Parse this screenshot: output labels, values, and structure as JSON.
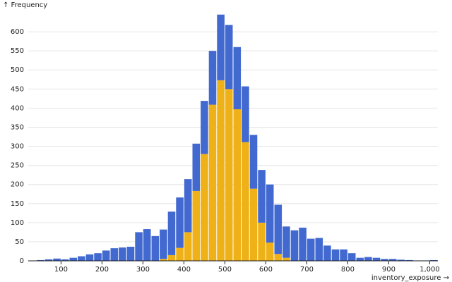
{
  "chart_data": {
    "type": "histogram",
    "y_label": "↑ Frequency",
    "x_label": "inventory_exposure →",
    "bins": [
      40,
      60,
      80,
      100,
      120,
      140,
      160,
      180,
      200,
      220,
      240,
      260,
      280,
      300,
      320,
      340,
      360,
      380,
      400,
      420,
      440,
      460,
      480,
      500,
      520,
      540,
      560,
      580,
      600,
      620,
      640,
      660,
      680,
      700,
      720,
      740,
      760,
      780,
      800,
      820,
      840,
      860,
      880,
      900,
      920,
      940,
      960,
      980,
      1000,
      1020
    ],
    "stacked": true,
    "series": [
      {
        "color": "#efb118",
        "values": [
          0,
          0,
          0,
          0,
          0,
          0,
          0,
          0,
          0,
          0,
          0,
          0,
          0,
          0,
          0,
          5,
          15,
          34,
          75,
          183,
          280,
          409,
          473,
          450,
          397,
          311,
          189,
          100,
          48,
          18,
          8,
          0,
          0,
          0,
          0,
          0,
          0,
          0,
          0,
          0,
          0,
          0,
          0,
          0,
          0,
          0,
          0,
          0,
          0
        ]
      },
      {
        "color": "#4269d0",
        "values": [
          2,
          4,
          6,
          4,
          8,
          12,
          17,
          20,
          27,
          33,
          35,
          37,
          75,
          83,
          65,
          77,
          114,
          132,
          139,
          124,
          139,
          141,
          172,
          168,
          163,
          146,
          141,
          138,
          152,
          129,
          82,
          80,
          87,
          58,
          60,
          40,
          30,
          30,
          20,
          8,
          10,
          8,
          5,
          5,
          3,
          2,
          1,
          1,
          2
        ]
      }
    ],
    "xlim": [
      20,
      1020
    ],
    "ylim": [
      0,
      650
    ],
    "xticks": [
      100,
      200,
      300,
      400,
      500,
      600,
      700,
      800,
      900,
      {
        "value": 1000,
        "label": "1,000"
      }
    ],
    "yticks": [
      0,
      50,
      100,
      150,
      200,
      250,
      300,
      350,
      400,
      450,
      500,
      550,
      600
    ],
    "grid": true
  }
}
